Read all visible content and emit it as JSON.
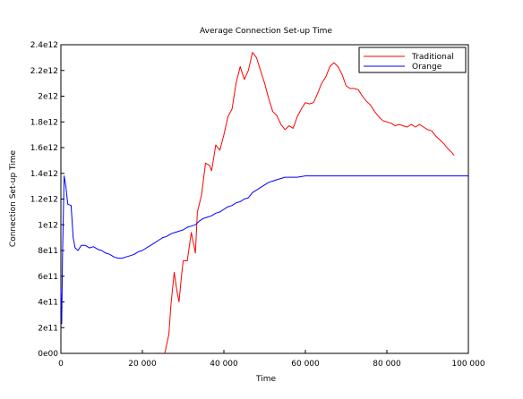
{
  "chart_data": {
    "type": "line",
    "title": "Average Connection Set-up Time",
    "xlabel": "Time",
    "ylabel": "Connection Set-up Time",
    "xlim": [
      0,
      100000
    ],
    "ylim": [
      0,
      2400000000000
    ],
    "x_ticks": [
      {
        "value": 0,
        "label": "0"
      },
      {
        "value": 20000,
        "label": "20 000"
      },
      {
        "value": 40000,
        "label": "40 000"
      },
      {
        "value": 60000,
        "label": "60 000"
      },
      {
        "value": 80000,
        "label": "80 000"
      },
      {
        "value": 100000,
        "label": "100 000"
      }
    ],
    "y_ticks": [
      {
        "value": 0,
        "label": "0e00"
      },
      {
        "value": 200000000000,
        "label": "2e11"
      },
      {
        "value": 400000000000,
        "label": "4e11"
      },
      {
        "value": 600000000000,
        "label": "6e11"
      },
      {
        "value": 800000000000,
        "label": "8e11"
      },
      {
        "value": 1000000000000,
        "label": "1e12"
      },
      {
        "value": 1200000000000,
        "label": "1.2e12"
      },
      {
        "value": 1400000000000,
        "label": "1.4e12"
      },
      {
        "value": 1600000000000,
        "label": "1.6e12"
      },
      {
        "value": 1800000000000,
        "label": "1.8e12"
      },
      {
        "value": 2000000000000,
        "label": "2e12"
      },
      {
        "value": 2200000000000,
        "label": "2.2e12"
      },
      {
        "value": 2400000000000,
        "label": "2.4e12"
      }
    ],
    "grid": false,
    "legend_position": "top-right",
    "series": [
      {
        "name": "Traditional",
        "color": "#ff0000",
        "points": [
          [
            25500,
            0
          ],
          [
            26500,
            150000000000
          ],
          [
            27000,
            380000000000
          ],
          [
            27800,
            630000000000
          ],
          [
            28500,
            480000000000
          ],
          [
            29000,
            400000000000
          ],
          [
            29500,
            570000000000
          ],
          [
            30000,
            720000000000
          ],
          [
            31000,
            720000000000
          ],
          [
            32000,
            940000000000
          ],
          [
            33000,
            780000000000
          ],
          [
            33500,
            1100000000000
          ],
          [
            34500,
            1230000000000
          ],
          [
            35500,
            1480000000000
          ],
          [
            36500,
            1460000000000
          ],
          [
            37000,
            1420000000000
          ],
          [
            38000,
            1620000000000
          ],
          [
            39000,
            1580000000000
          ],
          [
            40000,
            1700000000000
          ],
          [
            41000,
            1840000000000
          ],
          [
            42000,
            1900000000000
          ],
          [
            43000,
            2100000000000
          ],
          [
            44000,
            2230000000000
          ],
          [
            45000,
            2130000000000
          ],
          [
            46000,
            2200000000000
          ],
          [
            47000,
            2340000000000
          ],
          [
            48000,
            2300000000000
          ],
          [
            49000,
            2200000000000
          ],
          [
            50000,
            2100000000000
          ],
          [
            51000,
            1980000000000
          ],
          [
            52000,
            1880000000000
          ],
          [
            53000,
            1850000000000
          ],
          [
            54000,
            1780000000000
          ],
          [
            55000,
            1740000000000
          ],
          [
            56000,
            1770000000000
          ],
          [
            57000,
            1750000000000
          ],
          [
            58000,
            1840000000000
          ],
          [
            59000,
            1900000000000
          ],
          [
            60000,
            1950000000000
          ],
          [
            61000,
            1940000000000
          ],
          [
            62000,
            1950000000000
          ],
          [
            63000,
            2020000000000
          ],
          [
            64000,
            2100000000000
          ],
          [
            65000,
            2150000000000
          ],
          [
            66000,
            2230000000000
          ],
          [
            67000,
            2260000000000
          ],
          [
            68000,
            2230000000000
          ],
          [
            69000,
            2170000000000
          ],
          [
            70000,
            2080000000000
          ],
          [
            71000,
            2060000000000
          ],
          [
            72000,
            2060000000000
          ],
          [
            73000,
            2050000000000
          ],
          [
            74000,
            2000000000000
          ],
          [
            75000,
            1960000000000
          ],
          [
            76000,
            1930000000000
          ],
          [
            77000,
            1880000000000
          ],
          [
            78000,
            1840000000000
          ],
          [
            79000,
            1810000000000
          ],
          [
            80000,
            1800000000000
          ],
          [
            81000,
            1790000000000
          ],
          [
            82000,
            1770000000000
          ],
          [
            83000,
            1780000000000
          ],
          [
            84000,
            1770000000000
          ],
          [
            85000,
            1760000000000
          ],
          [
            86000,
            1780000000000
          ],
          [
            87000,
            1760000000000
          ],
          [
            88000,
            1780000000000
          ],
          [
            89000,
            1760000000000
          ],
          [
            90000,
            1740000000000
          ],
          [
            91000,
            1730000000000
          ],
          [
            92000,
            1690000000000
          ],
          [
            93000,
            1660000000000
          ],
          [
            94000,
            1630000000000
          ],
          [
            95000,
            1590000000000
          ],
          [
            96000,
            1560000000000
          ],
          [
            96500,
            1540000000000
          ]
        ]
      },
      {
        "name": "Orange",
        "color": "#0000ff",
        "points": [
          [
            0,
            500000000000
          ],
          [
            200,
            230000000000
          ],
          [
            400,
            750000000000
          ],
          [
            800,
            1380000000000
          ],
          [
            1200,
            1300000000000
          ],
          [
            1700,
            1160000000000
          ],
          [
            2500,
            1150000000000
          ],
          [
            3000,
            900000000000
          ],
          [
            3500,
            820000000000
          ],
          [
            4200,
            800000000000
          ],
          [
            5000,
            840000000000
          ],
          [
            6000,
            840000000000
          ],
          [
            7000,
            820000000000
          ],
          [
            8000,
            830000000000
          ],
          [
            9000,
            810000000000
          ],
          [
            10000,
            800000000000
          ],
          [
            11000,
            780000000000
          ],
          [
            12000,
            770000000000
          ],
          [
            13000,
            750000000000
          ],
          [
            14000,
            740000000000
          ],
          [
            15000,
            740000000000
          ],
          [
            16000,
            750000000000
          ],
          [
            17000,
            760000000000
          ],
          [
            18000,
            770000000000
          ],
          [
            19000,
            790000000000
          ],
          [
            20000,
            800000000000
          ],
          [
            21000,
            820000000000
          ],
          [
            22000,
            840000000000
          ],
          [
            23000,
            860000000000
          ],
          [
            24000,
            880000000000
          ],
          [
            25000,
            900000000000
          ],
          [
            26000,
            910000000000
          ],
          [
            27000,
            930000000000
          ],
          [
            28000,
            940000000000
          ],
          [
            29000,
            950000000000
          ],
          [
            30000,
            960000000000
          ],
          [
            31000,
            980000000000
          ],
          [
            32000,
            990000000000
          ],
          [
            33000,
            1000000000000
          ],
          [
            34000,
            1030000000000
          ],
          [
            35000,
            1050000000000
          ],
          [
            36000,
            1060000000000
          ],
          [
            37000,
            1070000000000
          ],
          [
            38000,
            1090000000000
          ],
          [
            39000,
            1100000000000
          ],
          [
            40000,
            1120000000000
          ],
          [
            41000,
            1140000000000
          ],
          [
            42000,
            1150000000000
          ],
          [
            43000,
            1170000000000
          ],
          [
            44000,
            1180000000000
          ],
          [
            45000,
            1200000000000
          ],
          [
            46000,
            1210000000000
          ],
          [
            47000,
            1250000000000
          ],
          [
            48000,
            1270000000000
          ],
          [
            49000,
            1290000000000
          ],
          [
            50000,
            1310000000000
          ],
          [
            51000,
            1330000000000
          ],
          [
            52000,
            1340000000000
          ],
          [
            53000,
            1350000000000
          ],
          [
            54000,
            1360000000000
          ],
          [
            55000,
            1370000000000
          ],
          [
            56000,
            1370000000000
          ],
          [
            58000,
            1370000000000
          ],
          [
            60000,
            1380000000000
          ],
          [
            65000,
            1380000000000
          ],
          [
            70000,
            1380000000000
          ],
          [
            75000,
            1380000000000
          ],
          [
            80000,
            1380000000000
          ],
          [
            85000,
            1380000000000
          ],
          [
            90000,
            1380000000000
          ],
          [
            95000,
            1380000000000
          ],
          [
            100000,
            1380000000000
          ]
        ]
      }
    ]
  }
}
